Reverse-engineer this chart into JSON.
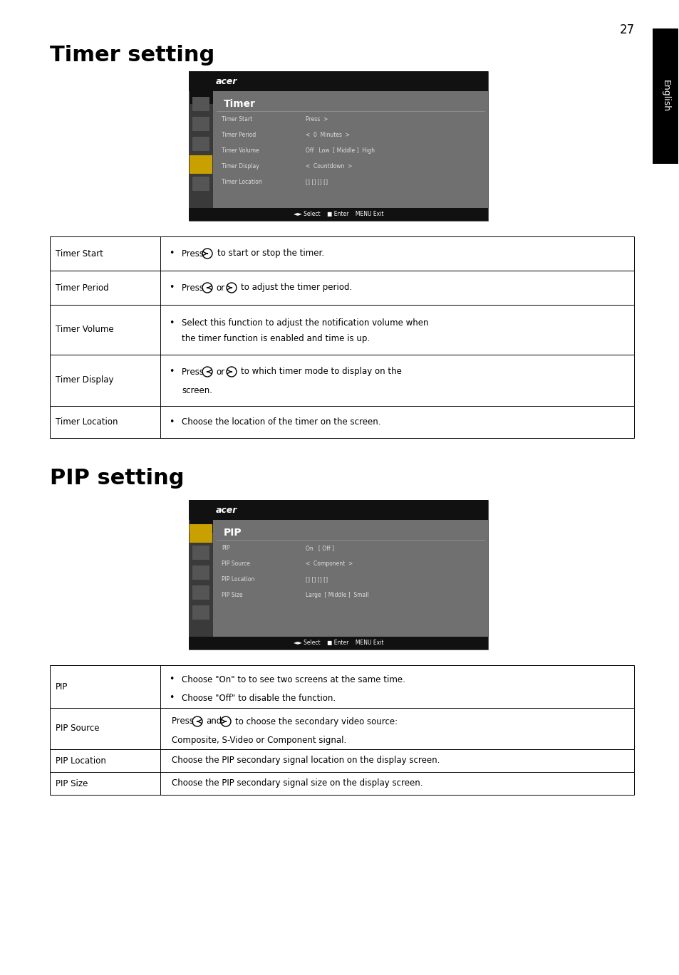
{
  "page_number": "27",
  "bg_color": "#ffffff",
  "english_tab_text": "English",
  "section1_title": "Timer setting",
  "section2_title": "PIP setting",
  "timer_menu_rows": [
    [
      "Timer Start",
      "Press  >"
    ],
    [
      "Timer Period",
      "<  0  Minutes  >"
    ],
    [
      "Timer Volume",
      "Off   Low  [ Middle ]  High"
    ],
    [
      "Timer Display",
      "<  Countdown  >"
    ],
    [
      "Timer Location",
      "[] [] [] []"
    ]
  ],
  "pip_menu_rows": [
    [
      "PIP",
      "On   [ Off ]"
    ],
    [
      "PIP Source",
      "<  Component  >"
    ],
    [
      "PIP Location",
      "[] [] [] []"
    ],
    [
      "PIP Size",
      "Large  [ Middle ]  Small"
    ]
  ],
  "timer_table": [
    {
      "label": "Timer Start",
      "rh": 48
    },
    {
      "label": "Timer Period",
      "rh": 48
    },
    {
      "label": "Timer Volume",
      "rh": 70
    },
    {
      "label": "Timer Display",
      "rh": 72
    },
    {
      "label": "Timer Location",
      "rh": 45
    }
  ],
  "pip_table": [
    {
      "label": "PIP",
      "rh": 60
    },
    {
      "label": "PIP Source",
      "rh": 58
    },
    {
      "label": "PIP Location",
      "rh": 32
    },
    {
      "label": "PIP Size",
      "rh": 32
    }
  ]
}
